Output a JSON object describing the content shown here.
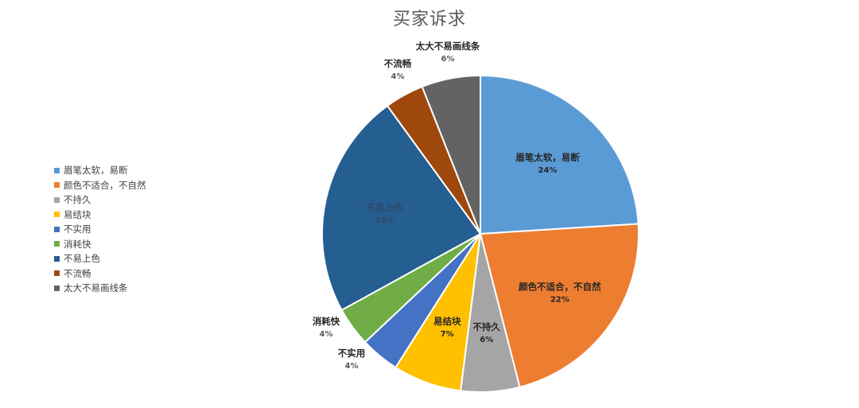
{
  "chart_data": {
    "type": "pie",
    "title": "买家诉求",
    "legend_position": "left",
    "slices": [
      {
        "label": "眉笔太软，易断",
        "value": 24,
        "pct_label": "24%",
        "color": "#5b9bd5",
        "label_inside": true,
        "label_color": "#262626"
      },
      {
        "label": "颜色不适合，不自然",
        "value": 22,
        "pct_label": "22%",
        "color": "#ed7d31",
        "label_inside": true,
        "label_color": "#262626"
      },
      {
        "label": "不持久",
        "value": 6,
        "pct_label": "6%",
        "color": "#a5a5a5",
        "label_inside": true,
        "label_color": "#262626"
      },
      {
        "label": "易结块",
        "value": 7,
        "pct_label": "7%",
        "color": "#ffc000",
        "label_inside": true,
        "label_color": "#262626"
      },
      {
        "label": "不实用",
        "value": 4,
        "pct_label": "4%",
        "color": "#4472c4",
        "label_inside": false,
        "label_color": "#262626"
      },
      {
        "label": "消耗快",
        "value": 4,
        "pct_label": "4%",
        "color": "#70ad47",
        "label_inside": false,
        "label_color": "#262626"
      },
      {
        "label": "不易上色",
        "value": 23,
        "pct_label": "23%",
        "color": "#255e91",
        "label_inside": true,
        "label_color": "#2f4b6b"
      },
      {
        "label": "不流畅",
        "value": 4,
        "pct_label": "4%",
        "color": "#9e480e",
        "label_inside": false,
        "label_color": "#262626"
      },
      {
        "label": "太大不易画线条",
        "value": 6,
        "pct_label": "6%",
        "color": "#636363",
        "label_inside": false,
        "label_color": "#262626"
      }
    ]
  }
}
